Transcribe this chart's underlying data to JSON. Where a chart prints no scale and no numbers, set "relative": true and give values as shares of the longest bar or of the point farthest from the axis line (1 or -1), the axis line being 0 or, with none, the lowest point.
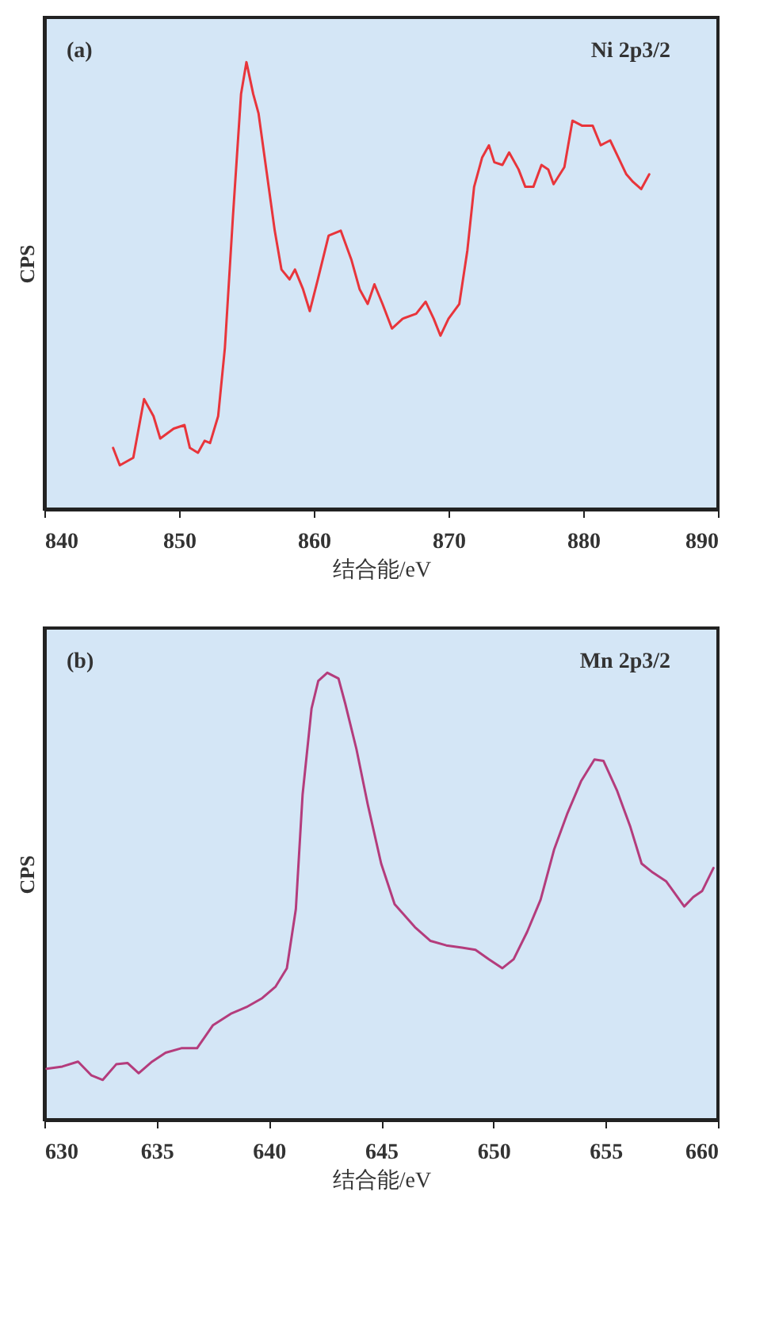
{
  "chart_data": [
    {
      "type": "line",
      "relative": true,
      "xlabel": "结合能/eV",
      "ylabel": "CPS",
      "annotations": [
        "(a)",
        "Ni 2p3/2"
      ],
      "xlim": [
        840,
        890
      ],
      "xticks": [
        840,
        850,
        860,
        870,
        880,
        890
      ],
      "grid": false,
      "marker": "none",
      "line_style": "solid",
      "x": [
        845.1,
        845.6,
        846.6,
        847.4,
        848.1,
        848.6,
        849.6,
        850.4,
        850.8,
        851.4,
        851.9,
        852.3,
        852.9,
        853.4,
        854.0,
        854.6,
        855.0,
        855.5,
        855.9,
        856.5,
        857.1,
        857.6,
        858.2,
        858.6,
        859.2,
        859.7,
        860.3,
        861.1,
        862.0,
        862.8,
        863.4,
        864.0,
        864.5,
        865.1,
        865.8,
        866.6,
        867.6,
        868.3,
        868.9,
        869.4,
        870.0,
        870.8,
        871.4,
        871.9,
        872.5,
        873.0,
        873.4,
        874.0,
        874.5,
        875.2,
        875.7,
        876.3,
        876.9,
        877.4,
        877.8,
        878.6,
        879.2,
        879.9,
        880.7,
        881.3,
        882.0,
        882.6,
        883.2,
        883.7,
        884.3,
        884.9
      ],
      "series": [
        {
          "color": "#e8353b",
          "values": [
            0.137,
            0.098,
            0.115,
            0.246,
            0.208,
            0.158,
            0.18,
            0.188,
            0.137,
            0.126,
            0.153,
            0.148,
            0.208,
            0.361,
            0.656,
            0.929,
            1.0,
            0.929,
            0.885,
            0.754,
            0.623,
            0.536,
            0.514,
            0.536,
            0.492,
            0.443,
            0.514,
            0.612,
            0.623,
            0.557,
            0.492,
            0.459,
            0.503,
            0.459,
            0.404,
            0.426,
            0.437,
            0.464,
            0.426,
            0.388,
            0.426,
            0.459,
            0.579,
            0.721,
            0.787,
            0.814,
            0.776,
            0.77,
            0.798,
            0.76,
            0.721,
            0.721,
            0.77,
            0.76,
            0.727,
            0.765,
            0.869,
            0.858,
            0.858,
            0.814,
            0.825,
            0.787,
            0.749,
            0.732,
            0.716,
            0.749
          ]
        }
      ]
    },
    {
      "type": "line",
      "relative": true,
      "xlabel": "结合能/eV",
      "ylabel": "CPS",
      "annotations": [
        "(b)",
        "Mn 2p3/2"
      ],
      "xlim": [
        630,
        660
      ],
      "xticks": [
        630,
        635,
        640,
        645,
        650,
        655,
        660
      ],
      "grid": false,
      "marker": "none",
      "line_style": "solid",
      "x": [
        630.1,
        630.8,
        631.5,
        632.1,
        632.6,
        633.2,
        633.7,
        634.2,
        634.8,
        635.4,
        636.1,
        636.8,
        637.5,
        638.3,
        639.0,
        639.7,
        640.3,
        640.8,
        641.2,
        641.5,
        641.9,
        642.2,
        642.6,
        643.1,
        643.4,
        643.9,
        644.4,
        645.0,
        645.6,
        646.5,
        647.2,
        647.9,
        648.6,
        649.2,
        649.8,
        650.4,
        650.9,
        651.5,
        652.1,
        652.7,
        653.3,
        653.9,
        654.5,
        654.9,
        655.5,
        656.1,
        656.6,
        657.1,
        657.7,
        658.0,
        658.5,
        658.9,
        659.3,
        659.8
      ],
      "series": [
        {
          "color": "#b43c7c",
          "values": [
            0.114,
            0.119,
            0.13,
            0.099,
            0.089,
            0.124,
            0.127,
            0.104,
            0.13,
            0.15,
            0.16,
            0.16,
            0.211,
            0.237,
            0.252,
            0.272,
            0.298,
            0.339,
            0.471,
            0.727,
            0.92,
            0.982,
            1.0,
            0.987,
            0.931,
            0.829,
            0.706,
            0.573,
            0.482,
            0.431,
            0.4,
            0.39,
            0.385,
            0.38,
            0.359,
            0.339,
            0.359,
            0.42,
            0.492,
            0.604,
            0.686,
            0.757,
            0.806,
            0.803,
            0.737,
            0.655,
            0.573,
            0.553,
            0.533,
            0.512,
            0.477,
            0.498,
            0.512,
            0.563
          ]
        }
      ]
    }
  ]
}
